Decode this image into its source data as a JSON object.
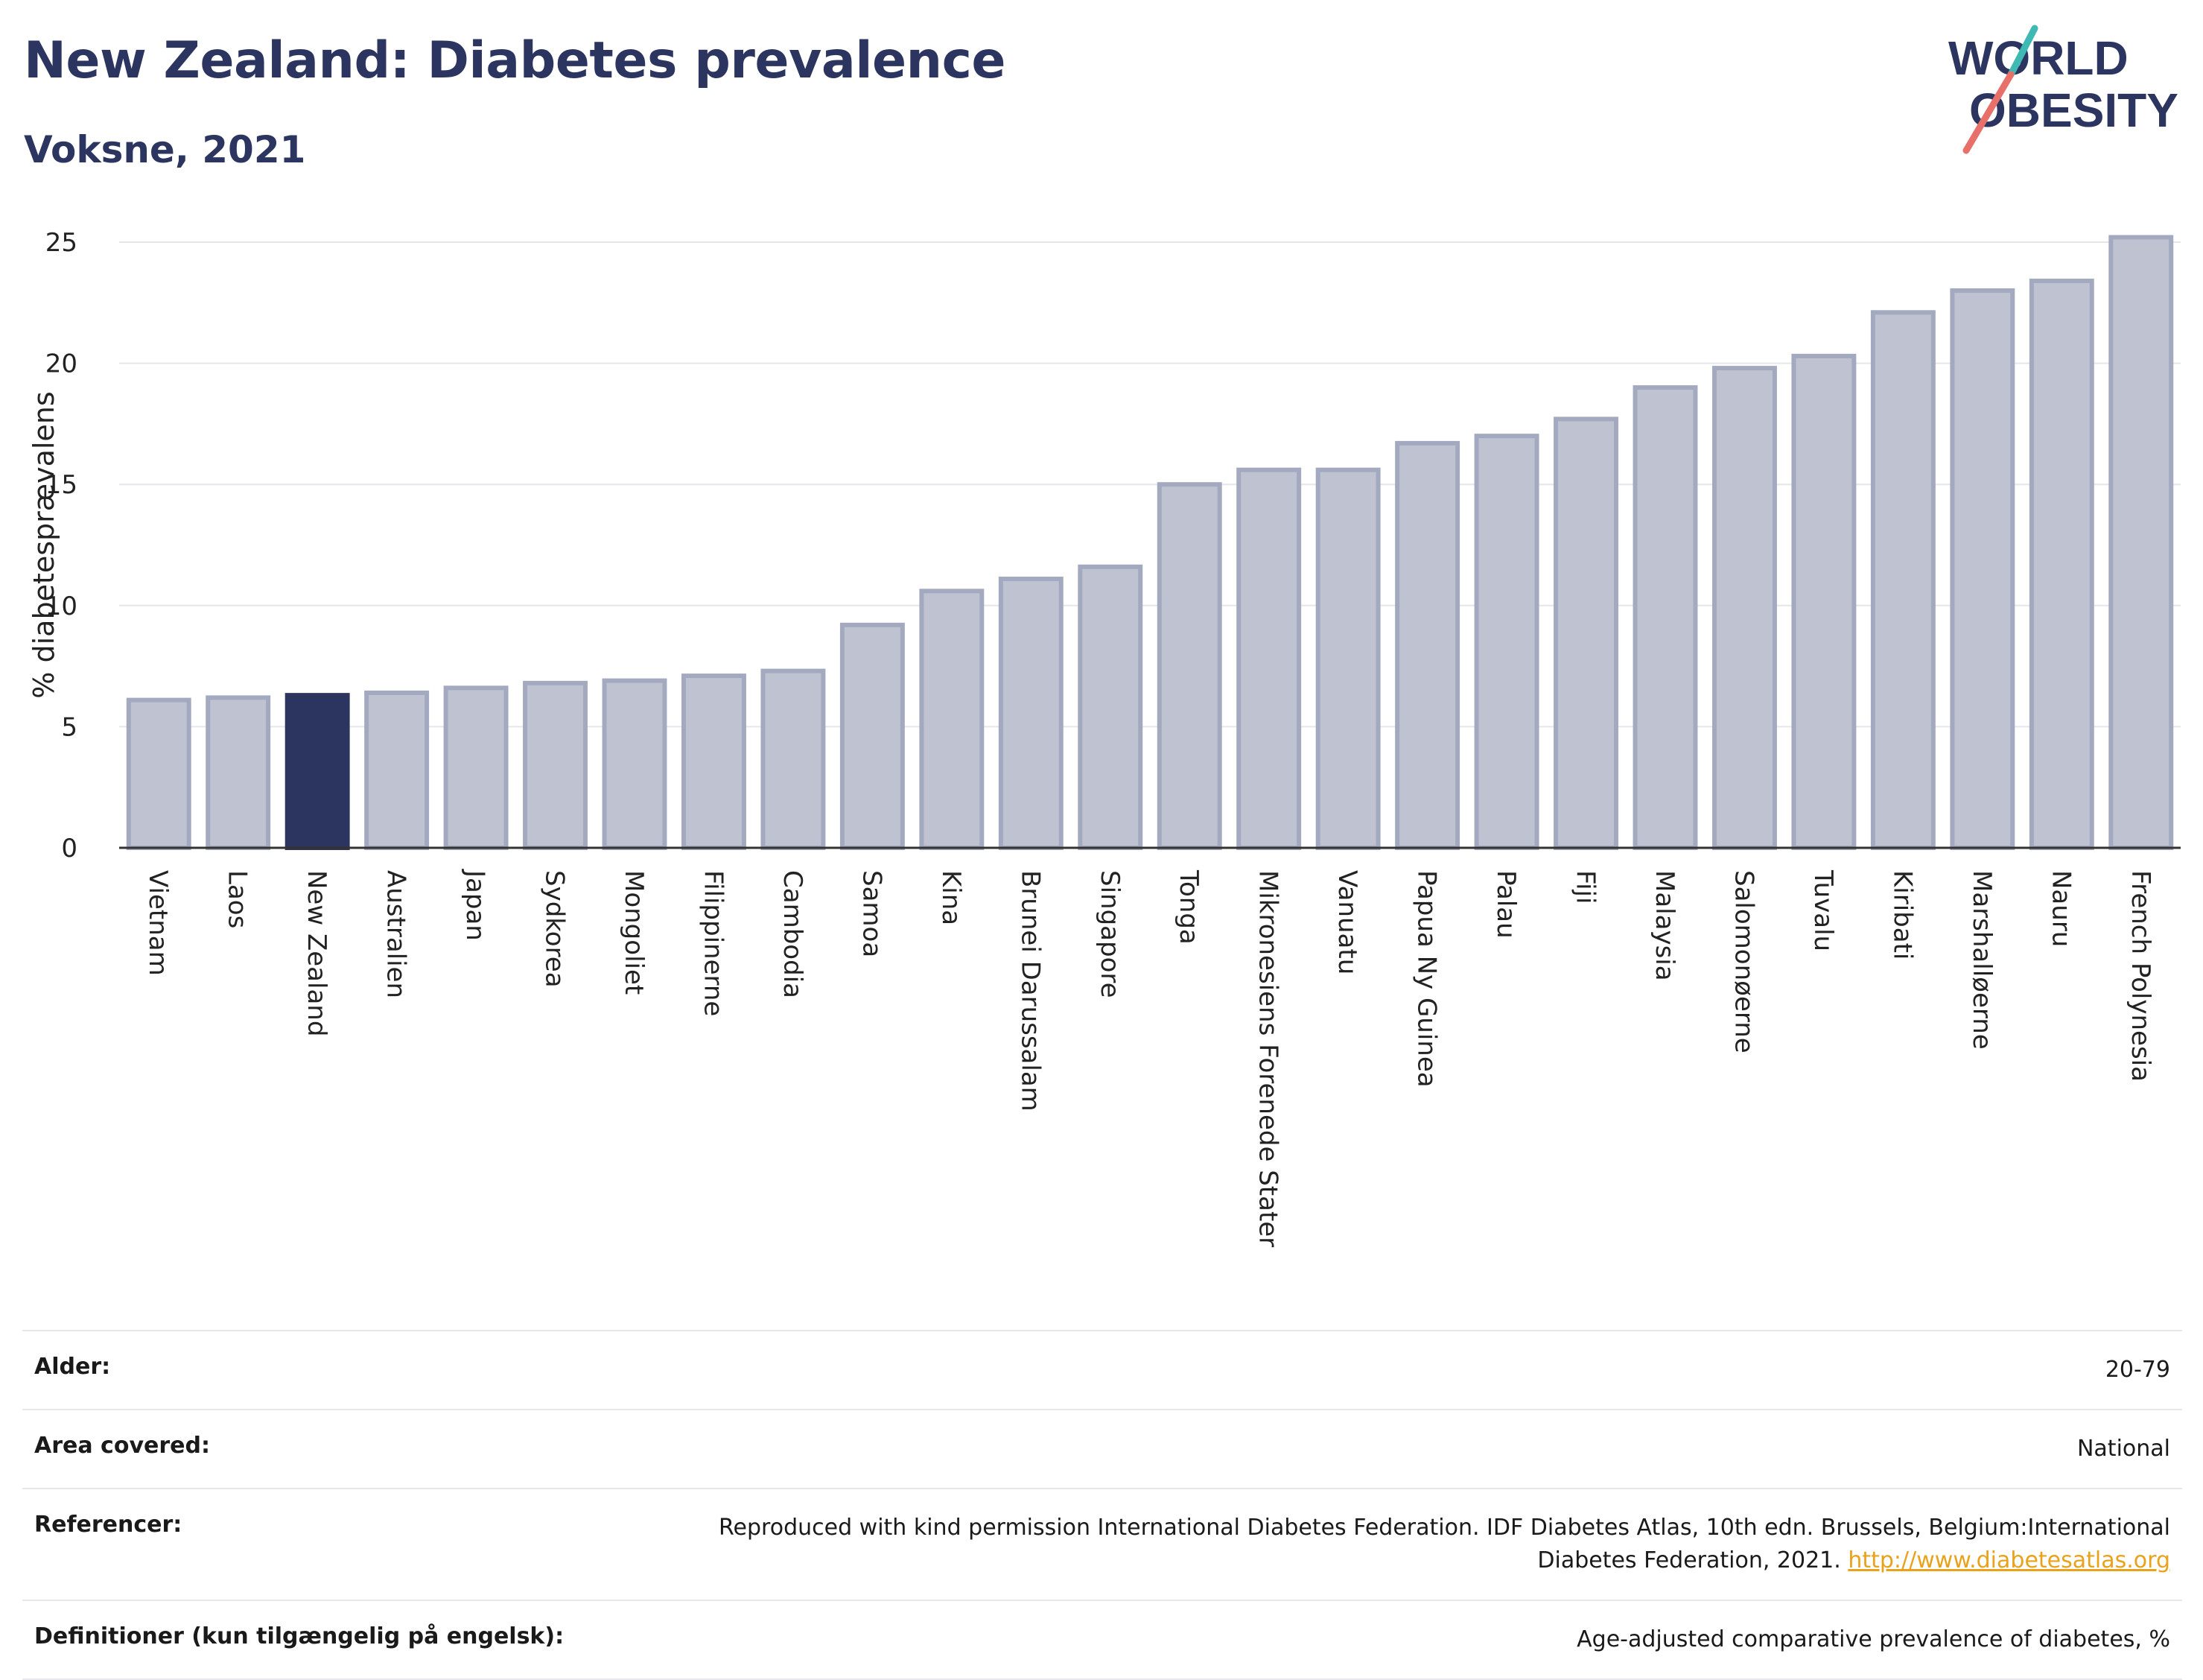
{
  "title": "New Zealand: Diabetes prevalence",
  "subtitle": "Voksne, 2021",
  "logo": {
    "line1": "WORLD",
    "line2": "OBESITY",
    "accent_teal": "#3fb9b3",
    "accent_red": "#e8706a",
    "text_color": "#2c3560"
  },
  "colors": {
    "bar": "#bfc3d1",
    "bar_stroke": "#a3a9bf",
    "highlight": "#2c3560",
    "grid": "#e4e6ec",
    "axis": "#333333"
  },
  "chart_data": {
    "type": "bar",
    "ylabel": "% diabetesprævalens",
    "ylim": [
      0,
      25
    ],
    "yticks": [
      0,
      5,
      10,
      15,
      20,
      25
    ],
    "highlight": "New Zealand",
    "categories": [
      "Vietnam",
      "Laos",
      "New Zealand",
      "Australien",
      "Japan",
      "Sydkorea",
      "Mongoliet",
      "Filippinerne",
      "Cambodia",
      "Samoa",
      "Kina",
      "Brunei Darussalam",
      "Singapore",
      "Tonga",
      "Mikronesiens Forenede Stater",
      "Vanuatu",
      "Papua Ny Guinea",
      "Palau",
      "Fiji",
      "Malaysia",
      "Salomonøerne",
      "Tuvalu",
      "Kiribati",
      "Marshalløerne",
      "Nauru",
      "French Polynesia"
    ],
    "values": [
      6.1,
      6.2,
      6.3,
      6.4,
      6.6,
      6.8,
      6.9,
      7.1,
      7.3,
      9.2,
      10.6,
      11.1,
      11.6,
      15.0,
      15.6,
      15.6,
      16.7,
      17.0,
      17.7,
      19.0,
      19.8,
      20.3,
      22.1,
      23.0,
      23.4,
      25.2
    ]
  },
  "meta": [
    {
      "key": "Alder:",
      "value": "20-79"
    },
    {
      "key": "Area covered:",
      "value": "National"
    },
    {
      "key": "Referencer:",
      "value": "Reproduced with kind permission International Diabetes Federation.  IDF Diabetes Atlas, 10th edn. Brussels, Belgium:International Diabetes Federation, 2021. ",
      "link": "http://www.diabetesatlas.org"
    },
    {
      "key": "Definitioner (kun tilgængelig på engelsk):",
      "value": "Age-adjusted comparative prevalence of diabetes, %"
    }
  ]
}
